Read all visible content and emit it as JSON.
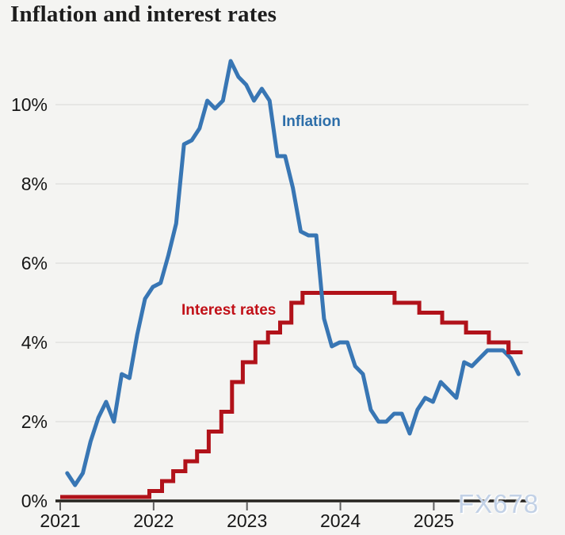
{
  "title": "Inflation and interest rates",
  "watermark": "FX678",
  "colors": {
    "background": "#f4f4f2",
    "gridline": "#e2e2e0",
    "axis": "#26241f",
    "tick": "#5f5f5f",
    "inflation_line": "#3876b4",
    "inflation_label": "#2d6ea9",
    "interest_line": "#b1121a",
    "interest_label": "#c11018",
    "watermark": "#c2d1e6"
  },
  "chart_data": {
    "type": "line",
    "title": "Inflation and interest rates",
    "grid": "horizontal-only",
    "legend": "inline-series-labels",
    "xlim": [
      2021,
      2026
    ],
    "ylim": [
      0,
      11.5
    ],
    "x_tick_years": [
      2021,
      2022,
      2023,
      2024,
      2025
    ],
    "x_tick_labels": [
      "2021",
      "2022",
      "2023",
      "2024",
      "2025"
    ],
    "y_ticks": [
      {
        "value": 0,
        "label": "0%"
      },
      {
        "value": 2,
        "label": "2%"
      },
      {
        "value": 4,
        "label": "4%"
      },
      {
        "value": 6,
        "label": "6%"
      },
      {
        "value": 8,
        "label": "8%"
      },
      {
        "value": 10,
        "label": "10%"
      }
    ],
    "series": [
      {
        "name": "Inflation",
        "type": "line",
        "color": "#3876b4",
        "unit": "%",
        "frequency": "monthly",
        "start_month": "2021-01",
        "values": [
          0.7,
          0.4,
          0.7,
          1.5,
          2.1,
          2.5,
          2.0,
          3.2,
          3.1,
          4.2,
          5.1,
          5.4,
          5.5,
          6.2,
          7.0,
          9.0,
          9.1,
          9.4,
          10.1,
          9.9,
          10.1,
          11.1,
          10.7,
          10.5,
          10.1,
          10.4,
          10.1,
          8.7,
          8.7,
          7.9,
          6.8,
          6.7,
          6.7,
          4.6,
          3.9,
          4.0,
          4.0,
          3.4,
          3.2,
          2.3,
          2.0,
          2.0,
          2.2,
          2.2,
          1.7,
          2.3,
          2.6,
          2.5,
          3.0,
          2.8,
          2.6,
          3.5,
          3.4,
          3.6,
          3.8,
          3.8,
          3.8,
          3.6,
          3.2
        ]
      },
      {
        "name": "Interest rates",
        "type": "step",
        "color": "#b1121a",
        "unit": "%",
        "points": [
          [
            2021.0,
            0.1
          ],
          [
            2021.955,
            0.25
          ],
          [
            2022.09,
            0.5
          ],
          [
            2022.21,
            0.75
          ],
          [
            2022.34,
            1.0
          ],
          [
            2022.465,
            1.25
          ],
          [
            2022.59,
            1.75
          ],
          [
            2022.725,
            2.25
          ],
          [
            2022.84,
            3.0
          ],
          [
            2022.955,
            3.5
          ],
          [
            2023.09,
            4.0
          ],
          [
            2023.225,
            4.25
          ],
          [
            2023.355,
            4.5
          ],
          [
            2023.475,
            5.0
          ],
          [
            2023.595,
            5.25
          ],
          [
            2024.58,
            5.0
          ],
          [
            2024.845,
            4.75
          ],
          [
            2025.09,
            4.5
          ],
          [
            2025.345,
            4.25
          ],
          [
            2025.59,
            4.0
          ],
          [
            2025.8,
            3.75
          ]
        ],
        "end_x": 2025.95
      }
    ]
  }
}
